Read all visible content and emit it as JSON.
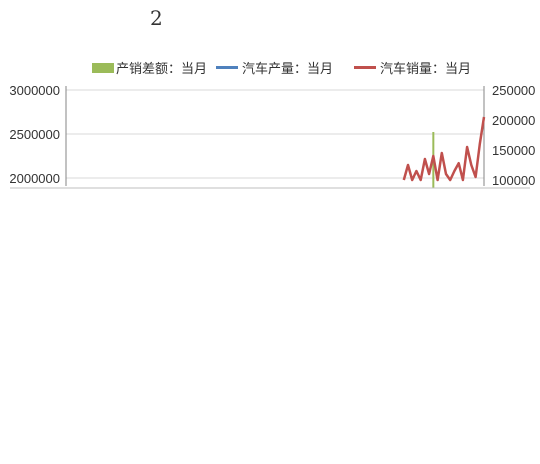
{
  "figure_number": "2",
  "colors": {
    "diff": "#9BBB59",
    "production": "#4F81BD",
    "sales": "#C0504D",
    "axis": "#868686"
  },
  "chart_data": {
    "type": "line",
    "title": "",
    "legend_position": "top",
    "legend": [
      "产销差额：当月",
      "汽车产量：当月",
      "汽车销量：当月"
    ],
    "left_axis": {
      "ticks": [
        "3000000",
        "2500000",
        "2000000"
      ],
      "values": [
        3000000,
        2500000,
        2000000
      ]
    },
    "right_axis": {
      "ticks": [
        "250000",
        "200000",
        "150000",
        "100000"
      ],
      "values": [
        250000,
        200000,
        150000,
        100000
      ]
    },
    "grid": true,
    "series": [
      {
        "name": "产销差额：当月",
        "kind": "bar",
        "axis": "right",
        "x": [
          87
        ],
        "values": [
          180000
        ]
      },
      {
        "name": "汽车产量：当月",
        "kind": "line",
        "axis": "left",
        "x": [],
        "values": []
      },
      {
        "name": "汽车销量：当月",
        "kind": "line",
        "axis": "right",
        "x": [
          80,
          81,
          82,
          83,
          84,
          85,
          86,
          87,
          88,
          89,
          90,
          91,
          92,
          93,
          94,
          95,
          96,
          97,
          98,
          99
        ],
        "values": [
          100000,
          125000,
          100000,
          115000,
          100000,
          135000,
          110000,
          140000,
          100000,
          145000,
          110000,
          100000,
          115000,
          128000,
          100000,
          155000,
          125000,
          105000,
          160000,
          205000
        ]
      }
    ]
  }
}
